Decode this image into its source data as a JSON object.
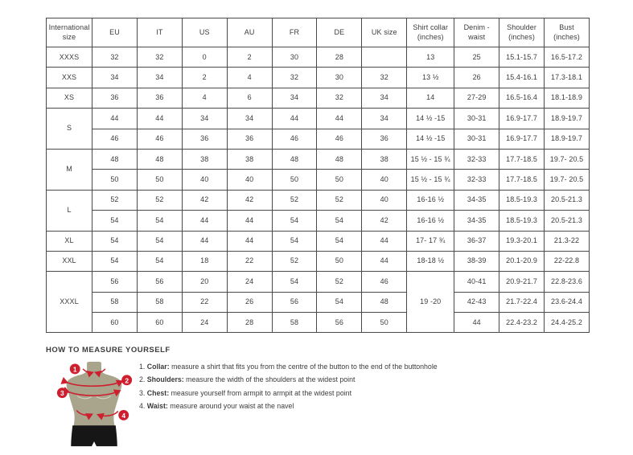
{
  "table": {
    "headers": [
      "International size",
      "EU",
      "IT",
      "US",
      "AU",
      "FR",
      "DE",
      "UK size",
      "Shirt collar (inches)",
      "Denim - waist",
      "Shoulder (inches)",
      "Bust (inches)"
    ],
    "rows": [
      [
        "XXXS",
        "32",
        "32",
        "0",
        "2",
        "30",
        "28",
        "",
        "13",
        "25",
        "15.1-15.7",
        "16.5-17.2"
      ],
      [
        "XXS",
        "34",
        "34",
        "2",
        "4",
        "32",
        "30",
        "32",
        "13 ½",
        "26",
        "15.4-16.1",
        "17.3-18.1"
      ],
      [
        "XS",
        "36",
        "36",
        "4",
        "6",
        "34",
        "32",
        "34",
        "14",
        "27-29",
        "16.5-16.4",
        "18.1-18.9"
      ],
      [
        {
          "t": "S",
          "rs": 2
        },
        "44",
        "44",
        "34",
        "34",
        "44",
        "44",
        "34",
        "14 ½ -15",
        "30-31",
        "16.9-17.7",
        "18.9-19.7"
      ],
      [
        "46",
        "46",
        "36",
        "36",
        "46",
        "46",
        "36",
        "14 ½ -15",
        "30-31",
        "16.9-17.7",
        "18.9-19.7"
      ],
      [
        {
          "t": "M",
          "rs": 2
        },
        "48",
        "48",
        "38",
        "38",
        "48",
        "48",
        "38",
        "15 ½ - 15 ¾",
        "32-33",
        "17.7-18.5",
        "19.7- 20.5"
      ],
      [
        "50",
        "50",
        "40",
        "40",
        "50",
        "50",
        "40",
        "15 ½ - 15 ¾",
        "32-33",
        "17.7-18.5",
        "19.7- 20.5"
      ],
      [
        {
          "t": "L",
          "rs": 2
        },
        "52",
        "52",
        "42",
        "42",
        "52",
        "52",
        "40",
        "16-16 ½",
        "34-35",
        "18.5-19.3",
        "20.5-21.3"
      ],
      [
        "54",
        "54",
        "44",
        "44",
        "54",
        "54",
        "42",
        "16-16 ½",
        "34-35",
        "18.5-19.3",
        "20.5-21.3"
      ],
      [
        "XL",
        "54",
        "54",
        "44",
        "44",
        "54",
        "54",
        "44",
        "17- 17 ¾",
        "36-37",
        "19.3-20.1",
        "21.3-22"
      ],
      [
        "XXL",
        "54",
        "54",
        "18",
        "22",
        "52",
        "50",
        "44",
        "18-18 ½",
        "38-39",
        "20.1-20.9",
        "22-22.8"
      ],
      [
        {
          "t": "XXXL",
          "rs": 3
        },
        "56",
        "56",
        "20",
        "24",
        "54",
        "52",
        "46",
        {
          "t": "19 -20",
          "rs": 3
        },
        "40-41",
        "20.9-21.7",
        "22.8-23.6"
      ],
      [
        "58",
        "58",
        "22",
        "26",
        "56",
        "54",
        "48",
        "42-43",
        "21.7-22.4",
        "23.6-24.4"
      ],
      [
        "60",
        "60",
        "24",
        "28",
        "58",
        "56",
        "50",
        "44",
        "22.4-23.2",
        "24.4-25.2"
      ]
    ]
  },
  "measure_guide": {
    "title": "HOW TO MEASURE YOURSELF",
    "steps": [
      {
        "num": "1.",
        "label": "Collar:",
        "text": "measure a shirt that fits you from the centre of the button to the end of the buttonhole"
      },
      {
        "num": "2.",
        "label": "Shoulders:",
        "text": "measure the width of the shoulders at the widest point"
      },
      {
        "num": "3.",
        "label": "Chest:",
        "text": "measure yourself from armpit to armpit at the widest point"
      },
      {
        "num": "4.",
        "label": "Waist:",
        "text": "measure around your waist at the navel"
      }
    ],
    "markers": [
      "1",
      "2",
      "3",
      "4"
    ]
  },
  "colors": {
    "accent_red": "#ce1f2e",
    "mannequin_body": "#a9a58c",
    "mannequin_shorts": "#161616",
    "table_border": "#4a4a4a",
    "text": "#3c3c3c"
  }
}
